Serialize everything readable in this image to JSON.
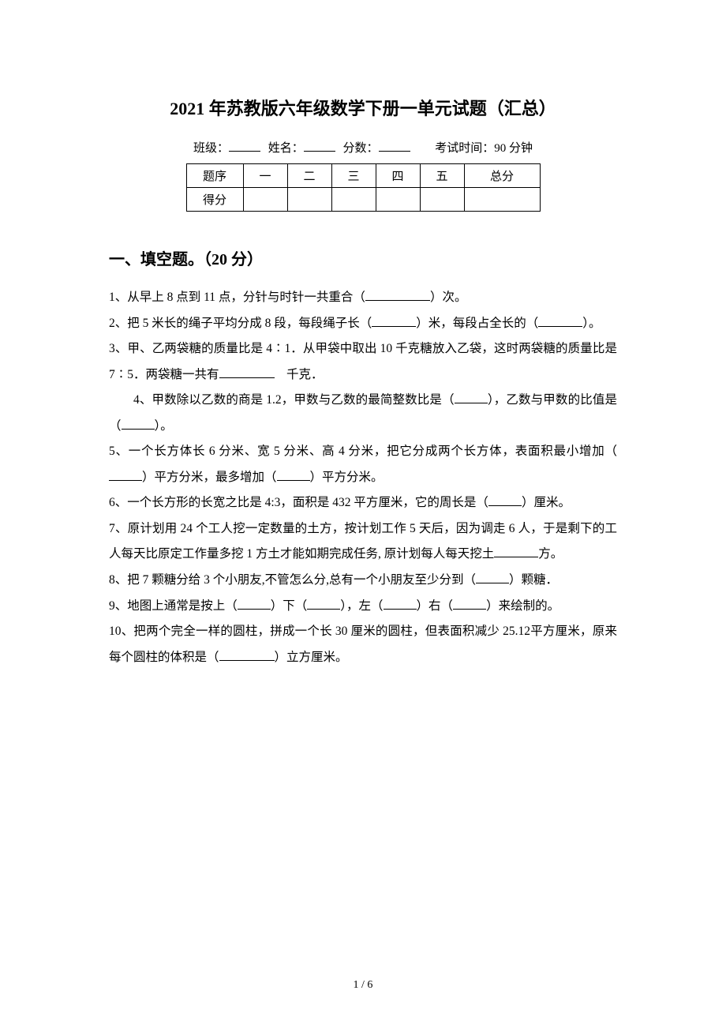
{
  "colors": {
    "background": "#ffffff",
    "text": "#000000",
    "border": "#000000"
  },
  "typography": {
    "title_fontsize": 22,
    "section_fontsize": 20,
    "body_fontsize": 15.5,
    "meta_fontsize": 15,
    "footer_fontsize": 14,
    "font_family": "SimSun"
  },
  "title": "2021 年苏教版六年级数学下册一单元试题（汇总）",
  "meta": {
    "class_label": "班级：",
    "name_label": "姓名：",
    "score_label": "分数：",
    "exam_time_label": "考试时间：90 分钟"
  },
  "score_table": {
    "row1": [
      "题序",
      "一",
      "二",
      "三",
      "四",
      "五",
      "总分"
    ],
    "row2_label": "得分"
  },
  "section1": {
    "heading": "一、填空题。（20 分）",
    "q1": {
      "t1": "1、从早上 8 点到 11 点，分针与时针一共重合（",
      "t2": "）次。"
    },
    "q2": {
      "t1": "2、把 5 米长的绳子平均分成 8 段，每段绳子长（",
      "t2": "）米，每段占全长的（",
      "t3": "）。"
    },
    "q3": {
      "t1": "3、甲、乙两袋糖的质量比是 4∶1．从甲袋中取出 10 千克糖放入乙袋，这时两袋糖的质量比是 7∶5．两袋糖一共有",
      "t2": "　千克．"
    },
    "q4": {
      "t1": "4、甲数除以乙数的商是 1.2，甲数与乙数的最简整数比是（",
      "t2": "），乙数与甲数的比值是（",
      "t3": "）。"
    },
    "q5": {
      "t1": "5、一个长方体长 6 分米、宽 5 分米、高 4 分米，把它分成两个长方体，表面积最小增加（",
      "t2": "）平方分米，最多增加（",
      "t3": "）平方分米。"
    },
    "q6": {
      "t1": "6、一个长方形的长宽之比是 4:3，面积是 432 平方厘米，它的周长是（",
      "t2": "）厘米。"
    },
    "q7": {
      "t1": "7、原计划用 24 个工人挖一定数量的土方，按计划工作 5 天后，因为调走 6 人，于是剩下的工人每天比原定工作量多挖 1 方土才能如期完成任务, 原计划每人每天挖土",
      "t2": "方。"
    },
    "q8": {
      "t1": "8、把 7 颗糖分给 3 个小朋友,不管怎么分,总有一个小朋友至少分到（",
      "t2": "）颗糖．"
    },
    "q9": {
      "t1": "9、地图上通常是按上（",
      "t2": "）下（",
      "t3": "），左（",
      "t4": "）右（",
      "t5": "）来绘制的。"
    },
    "q10": {
      "t1": "10、把两个完全一样的圆柱，拼成一个长 30 厘米的圆柱，但表面积减少 25.12平方厘米，原来每个圆柱的体积是（",
      "t2": "）立方厘米。"
    }
  },
  "footer": "1 / 6"
}
